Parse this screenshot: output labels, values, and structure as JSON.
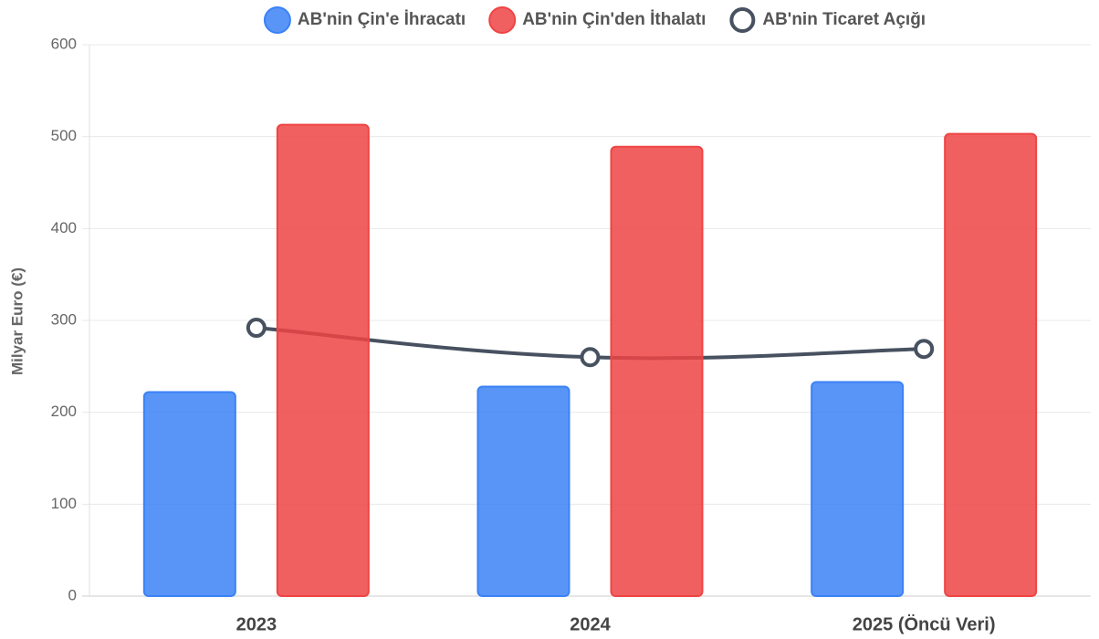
{
  "chart_data": {
    "type": "bar-line",
    "y_axis_label": "Milyar Euro (€)",
    "categories": [
      "2023",
      "2024",
      "2025 (Öncü Veri)"
    ],
    "series": [
      {
        "name": "AB'nin Çin'e İhracatı",
        "type": "bar",
        "color": "#3b82f6",
        "values": [
          222,
          228,
          233
        ]
      },
      {
        "name": "AB'nin Çin'den İthalatı",
        "type": "bar",
        "color": "#ef4444",
        "values": [
          513,
          489,
          503
        ]
      },
      {
        "name": "AB'nin Ticaret Açığı",
        "type": "line",
        "color": "#475160",
        "values": [
          292,
          260,
          269
        ]
      }
    ],
    "ylim": [
      0,
      600
    ],
    "yticks": [
      0,
      100,
      200,
      300,
      400,
      500,
      600
    ],
    "grid": true,
    "legend": "top"
  }
}
